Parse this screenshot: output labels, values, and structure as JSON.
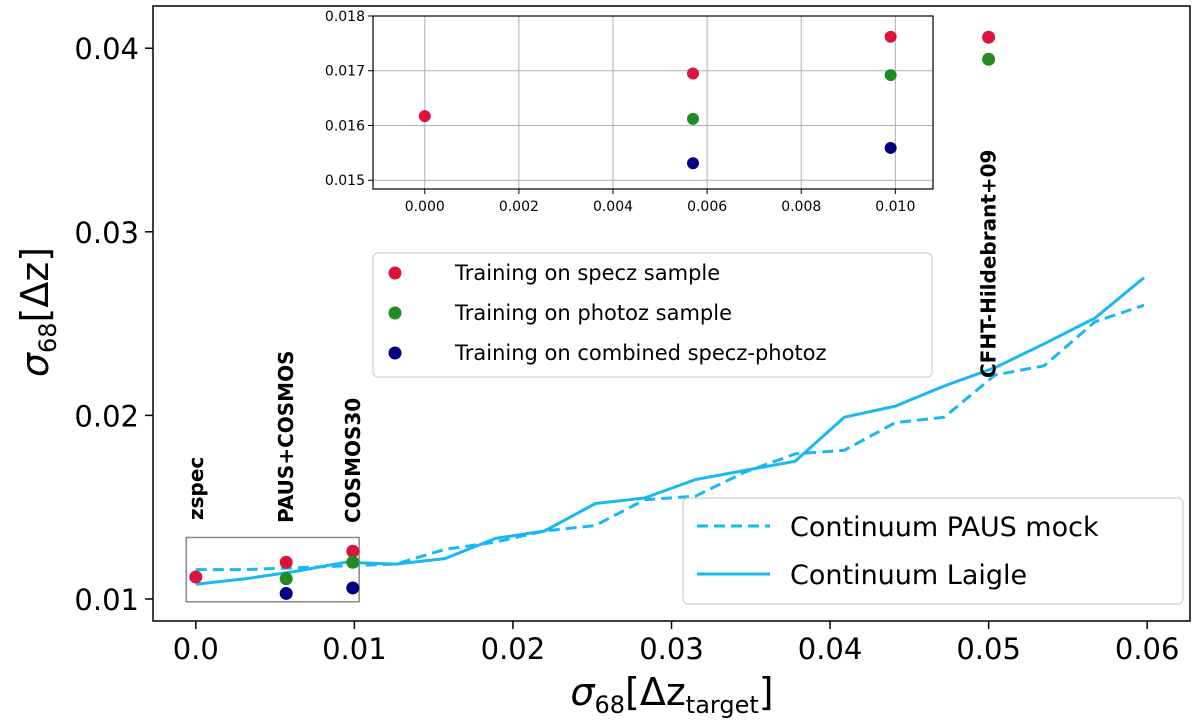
{
  "chart_data": {
    "type": "scatter",
    "xlabel": {
      "main": "σ",
      "sub": "68",
      "bracket_open": "[Δz",
      "bracket_sub": "target",
      "bracket_close": "]"
    },
    "ylabel": {
      "main": "σ",
      "sub": "68",
      "bracket": "[Δz]"
    },
    "xlim": [
      -0.0027,
      0.0627
    ],
    "ylim": [
      0.0088,
      0.0423
    ],
    "xticks": [
      0.0,
      0.01,
      0.02,
      0.03,
      0.04,
      0.05,
      0.06
    ],
    "xtick_labels": [
      "0.0",
      "0.01",
      "0.02",
      "0.03",
      "0.04",
      "0.05",
      "0.06"
    ],
    "yticks": [
      0.01,
      0.02,
      0.03,
      0.04
    ],
    "ytick_labels": [
      "0.01",
      "0.02",
      "0.03",
      "0.04"
    ],
    "scatter_series": [
      {
        "name": "Training on specz sample",
        "color": "#dc143c",
        "x": [
          0.0,
          0.0057,
          0.0099,
          0.05
        ],
        "y": [
          0.0112,
          0.012,
          0.0126,
          0.0406
        ]
      },
      {
        "name": "Training on photoz sample",
        "color": "#228b22",
        "x": [
          0.0057,
          0.0099,
          0.05
        ],
        "y": [
          0.0111,
          0.012,
          0.0394
        ]
      },
      {
        "name": "Training on combined specz-photoz",
        "color": "#000080",
        "x": [
          0.0057,
          0.0099
        ],
        "y": [
          0.0103,
          0.0106
        ]
      }
    ],
    "line_series": [
      {
        "name": "Continuum PAUS mock",
        "style": "dashed",
        "color": "#1ab8f0",
        "x": [
          0.0,
          0.0031,
          0.0063,
          0.0094,
          0.0126,
          0.0157,
          0.0189,
          0.022,
          0.0252,
          0.0283,
          0.0315,
          0.0346,
          0.0378,
          0.0409,
          0.0441,
          0.0472,
          0.0504,
          0.0535,
          0.0567,
          0.0598
        ],
        "y": [
          0.0116,
          0.0116,
          0.0117,
          0.0118,
          0.0119,
          0.0127,
          0.0131,
          0.0137,
          0.014,
          0.0154,
          0.0156,
          0.0169,
          0.0179,
          0.0181,
          0.0196,
          0.0199,
          0.0222,
          0.0227,
          0.0251,
          0.026
        ]
      },
      {
        "name": "Continuum Laigle",
        "style": "solid",
        "color": "#1ab8f0",
        "x": [
          0.0,
          0.0031,
          0.0063,
          0.0094,
          0.0126,
          0.0157,
          0.0189,
          0.022,
          0.0252,
          0.0283,
          0.0315,
          0.0346,
          0.0378,
          0.0409,
          0.0441,
          0.0472,
          0.0504,
          0.0535,
          0.0567,
          0.0598
        ],
        "y": [
          0.0108,
          0.0111,
          0.0115,
          0.012,
          0.0119,
          0.0122,
          0.0133,
          0.0137,
          0.0152,
          0.0155,
          0.0165,
          0.017,
          0.0175,
          0.0199,
          0.0205,
          0.0216,
          0.0226,
          0.0239,
          0.0253,
          0.0275
        ]
      }
    ],
    "annotations": [
      {
        "text": "zspec",
        "x": 0.0
      },
      {
        "text": "PAUS+COSMOS",
        "x": 0.0057
      },
      {
        "text": "COSMOS30",
        "x": 0.0099
      },
      {
        "text": "CFHT-Hildebrant+09",
        "x": 0.05
      }
    ],
    "zoom_box": {
      "x": [
        -0.0006,
        0.0103
      ],
      "y": [
        0.00985,
        0.01335
      ]
    },
    "legend_markers": [
      "Training on specz sample",
      "Training on photoz sample",
      "Training on combined specz-photoz"
    ],
    "legend_lines": [
      "Continuum PAUS mock",
      "Continuum Laigle"
    ],
    "legend_markers_position": "center",
    "legend_lines_position": "lower-right",
    "inset": {
      "xlim": [
        -0.0011,
        0.0108
      ],
      "ylim": [
        0.01484,
        0.018
      ],
      "xticks": [
        0.0,
        0.002,
        0.004,
        0.006,
        0.008,
        0.01
      ],
      "xtick_labels": [
        "0.000",
        "0.002",
        "0.004",
        "0.006",
        "0.008",
        "0.010"
      ],
      "yticks": [
        0.015,
        0.016,
        0.017,
        0.018
      ],
      "ytick_labels": [
        "0.015",
        "0.016",
        "0.017",
        "0.018"
      ],
      "grid": true,
      "series": [
        {
          "name": "Training on specz sample",
          "color": "#dc143c",
          "x": [
            0.0,
            0.0057,
            0.0099
          ],
          "y": [
            0.01617,
            0.01695,
            0.01762
          ]
        },
        {
          "name": "Training on photoz sample",
          "color": "#228b22",
          "x": [
            0.0057,
            0.0099
          ],
          "y": [
            0.01612,
            0.01692
          ]
        },
        {
          "name": "Training on combined specz-photoz",
          "color": "#000080",
          "x": [
            0.0057,
            0.0099
          ],
          "y": [
            0.01531,
            0.01559
          ]
        }
      ]
    }
  }
}
